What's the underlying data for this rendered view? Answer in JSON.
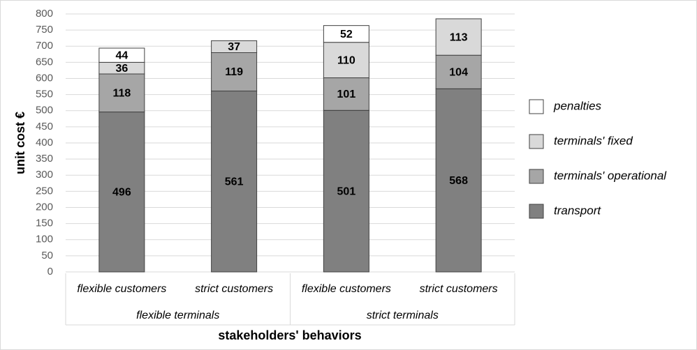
{
  "chart_data": {
    "type": "stacked_bar",
    "categories": [
      "flexible customers",
      "strict customers",
      "flexible customers",
      "strict customers"
    ],
    "groups": [
      "flexible terminals",
      "strict terminals"
    ],
    "series": [
      {
        "name": "transport",
        "color": "#808080",
        "values": [
          496,
          561,
          501,
          568
        ]
      },
      {
        "name": "terminals' operational",
        "color": "#a6a6a6",
        "values": [
          118,
          119,
          101,
          104
        ]
      },
      {
        "name": "terminals' fixed",
        "color": "#d9d9d9",
        "values": [
          36,
          37,
          110,
          113
        ]
      },
      {
        "name": "penalties",
        "color": "#ffffff",
        "values": [
          44,
          null,
          52,
          null
        ]
      }
    ],
    "ylim": [
      0,
      800
    ],
    "yticks": [
      0,
      50,
      100,
      150,
      200,
      250,
      300,
      350,
      400,
      450,
      500,
      550,
      600,
      650,
      700,
      750,
      800
    ],
    "ylabel": "unit cost €",
    "xlabel": "stakeholders' behaviors",
    "grid": true,
    "legend": "right"
  }
}
